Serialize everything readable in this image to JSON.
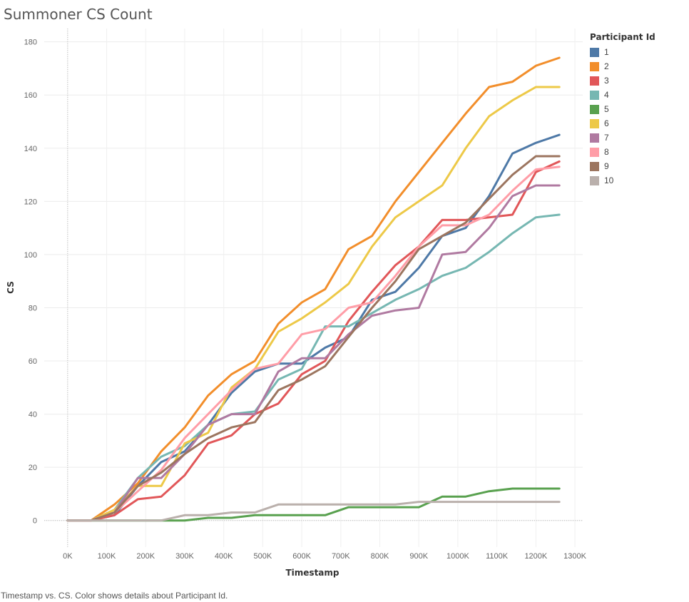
{
  "title": "Summoner CS Count",
  "caption": "Timestamp vs. CS.  Color shows details about Participant Id.",
  "legend": {
    "title": "Participant Id",
    "placement": "right"
  },
  "chart_data": {
    "type": "line",
    "title": "Summoner CS Count",
    "xlabel": "Timestamp",
    "ylabel": "CS",
    "xlim": [
      -60000,
      1320000
    ],
    "ylim": [
      -10,
      185
    ],
    "x_ticks": [
      0,
      100000,
      200000,
      300000,
      400000,
      500000,
      600000,
      700000,
      800000,
      900000,
      1000000,
      1100000,
      1200000,
      1300000
    ],
    "x_tick_labels": [
      "0K",
      "100K",
      "200K",
      "300K",
      "400K",
      "500K",
      "600K",
      "700K",
      "800K",
      "900K",
      "1000K",
      "1100K",
      "1200K",
      "1300K"
    ],
    "y_ticks": [
      0,
      20,
      40,
      60,
      80,
      100,
      120,
      140,
      160,
      180
    ],
    "y_tick_labels": [
      "0",
      "20",
      "40",
      "60",
      "80",
      "100",
      "120",
      "140",
      "160",
      "180"
    ],
    "grid": true,
    "x": [
      0,
      60000,
      120000,
      180000,
      240000,
      300000,
      360000,
      420000,
      480000,
      540000,
      600000,
      660000,
      720000,
      780000,
      840000,
      900000,
      960000,
      1020000,
      1080000,
      1140000,
      1200000,
      1260000
    ],
    "series": [
      {
        "name": "1",
        "color": "#4e79a7",
        "values": [
          0,
          0,
          2,
          13,
          22,
          26,
          36,
          48,
          56,
          59,
          59,
          65,
          69,
          83,
          86,
          95,
          107,
          110,
          122,
          138,
          142,
          145
        ]
      },
      {
        "name": "2",
        "color": "#f28e2b",
        "values": [
          0,
          0,
          6,
          14,
          26,
          35,
          47,
          55,
          60,
          74,
          82,
          87,
          102,
          107,
          120,
          131,
          142,
          153,
          163,
          165,
          171,
          174
        ]
      },
      {
        "name": "3",
        "color": "#e15759",
        "values": [
          0,
          0,
          2,
          8,
          9,
          17,
          29,
          32,
          40,
          44,
          55,
          60,
          75,
          86,
          96,
          103,
          113,
          113,
          114,
          115,
          131,
          135
        ]
      },
      {
        "name": "4",
        "color": "#76b7b2",
        "values": [
          0,
          0,
          4,
          16,
          24,
          28,
          36,
          40,
          41,
          53,
          57,
          73,
          73,
          78,
          83,
          87,
          92,
          95,
          101,
          108,
          114,
          115
        ]
      },
      {
        "name": "5",
        "color": "#59a14f",
        "values": [
          0,
          0,
          0,
          0,
          0,
          0,
          1,
          1,
          2,
          2,
          2,
          2,
          5,
          5,
          5,
          5,
          9,
          9,
          11,
          12,
          12,
          12
        ]
      },
      {
        "name": "6",
        "color": "#edc948",
        "values": [
          0,
          0,
          4,
          13,
          13,
          29,
          33,
          50,
          57,
          71,
          76,
          82,
          89,
          103,
          114,
          120,
          126,
          140,
          152,
          158,
          163,
          163
        ]
      },
      {
        "name": "7",
        "color": "#b07aa1",
        "values": [
          0,
          0,
          3,
          16,
          16,
          25,
          36,
          40,
          40,
          56,
          61,
          61,
          70,
          77,
          79,
          80,
          100,
          101,
          110,
          122,
          126,
          126
        ]
      },
      {
        "name": "8",
        "color": "#ff9da7",
        "values": [
          0,
          0,
          3,
          11,
          19,
          31,
          40,
          49,
          57,
          59,
          70,
          72,
          80,
          82,
          92,
          103,
          111,
          111,
          115,
          124,
          132,
          133
        ]
      },
      {
        "name": "9",
        "color": "#9c755f",
        "values": [
          0,
          0,
          3,
          13,
          18,
          25,
          31,
          35,
          37,
          49,
          53,
          58,
          69,
          80,
          90,
          102,
          107,
          112,
          121,
          130,
          137,
          137
        ]
      },
      {
        "name": "10",
        "color": "#bab0ac",
        "values": [
          0,
          0,
          0,
          0,
          0,
          2,
          2,
          3,
          3,
          6,
          6,
          6,
          6,
          6,
          6,
          7,
          7,
          7,
          7,
          7,
          7,
          7
        ]
      }
    ]
  }
}
